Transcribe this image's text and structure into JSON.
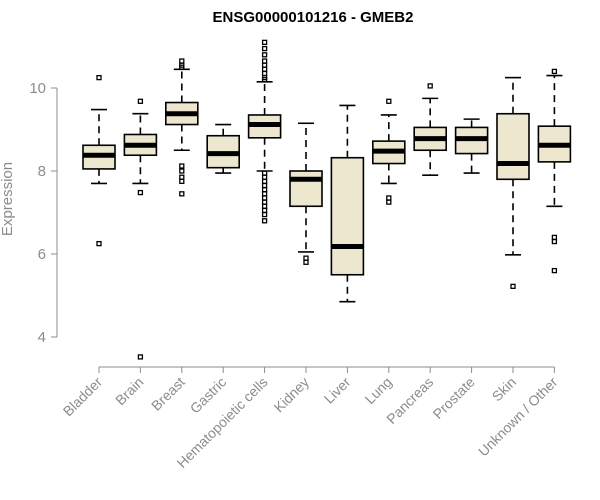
{
  "chart_data": {
    "type": "boxplot",
    "title": "ENSG00000101216 - GMEB2",
    "xlabel": "",
    "ylabel": "Expression",
    "ylim": [
      3.4,
      11.2
    ],
    "yticks": [
      4,
      6,
      8,
      10
    ],
    "grid": false,
    "colors": {
      "box_fill": "#ede7d0",
      "stroke": "#000000",
      "axis_text": "#8c8c8c"
    },
    "categories": [
      "Bladder",
      "Brain",
      "Breast",
      "Gastric",
      "Hematopoietic cells",
      "Kidney",
      "Liver",
      "Lung",
      "Pancreas",
      "Prostate",
      "Skin",
      "Unknown / Other"
    ],
    "boxes": [
      {
        "category": "Bladder",
        "whisker_low": 7.7,
        "q1": 8.05,
        "median": 8.38,
        "q3": 8.62,
        "whisker_high": 9.48,
        "outliers": [
          10.25,
          6.25
        ]
      },
      {
        "category": "Brain",
        "whisker_low": 7.7,
        "q1": 8.38,
        "median": 8.62,
        "q3": 8.88,
        "whisker_high": 9.38,
        "outliers": [
          9.68,
          7.48,
          3.52
        ]
      },
      {
        "category": "Breast",
        "whisker_low": 8.5,
        "q1": 9.12,
        "median": 9.38,
        "q3": 9.65,
        "whisker_high": 10.45,
        "outliers": [
          10.65,
          10.55,
          10.5,
          8.12,
          8.0,
          7.85,
          7.75,
          7.45
        ]
      },
      {
        "category": "Gastric",
        "whisker_low": 7.95,
        "q1": 8.08,
        "median": 8.42,
        "q3": 8.85,
        "whisker_high": 9.12,
        "outliers": []
      },
      {
        "category": "Hematopoietic cells",
        "whisker_low": 8.0,
        "q1": 8.8,
        "median": 9.12,
        "q3": 9.35,
        "whisker_high": 10.15,
        "outliers": [
          11.1,
          10.95,
          10.8,
          10.65,
          10.55,
          10.45,
          10.35,
          10.25,
          10.2,
          7.95,
          7.85,
          7.75,
          7.65,
          7.55,
          7.45,
          7.35,
          7.25,
          7.15,
          7.05,
          6.95,
          6.8
        ]
      },
      {
        "category": "Kidney",
        "whisker_low": 6.05,
        "q1": 7.15,
        "median": 7.8,
        "q3": 8.0,
        "whisker_high": 9.15,
        "outliers": [
          5.9,
          5.8
        ]
      },
      {
        "category": "Liver",
        "whisker_low": 4.85,
        "q1": 5.5,
        "median": 6.18,
        "q3": 8.32,
        "whisker_high": 9.58,
        "outliers": []
      },
      {
        "category": "Lung",
        "whisker_low": 7.7,
        "q1": 8.18,
        "median": 8.48,
        "q3": 8.72,
        "whisker_high": 9.35,
        "outliers": [
          9.68,
          7.35,
          7.25
        ]
      },
      {
        "category": "Pancreas",
        "whisker_low": 7.9,
        "q1": 8.5,
        "median": 8.78,
        "q3": 9.05,
        "whisker_high": 9.75,
        "outliers": [
          10.05
        ]
      },
      {
        "category": "Prostate",
        "whisker_low": 7.95,
        "q1": 8.42,
        "median": 8.78,
        "q3": 9.05,
        "whisker_high": 9.25,
        "outliers": []
      },
      {
        "category": "Skin",
        "whisker_low": 5.98,
        "q1": 7.8,
        "median": 8.18,
        "q3": 9.38,
        "whisker_high": 10.25,
        "outliers": [
          5.22
        ]
      },
      {
        "category": "Unknown / Other",
        "whisker_low": 7.15,
        "q1": 8.22,
        "median": 8.62,
        "q3": 9.08,
        "whisker_high": 10.3,
        "outliers": [
          10.4,
          6.4,
          6.3,
          5.6
        ]
      }
    ]
  }
}
